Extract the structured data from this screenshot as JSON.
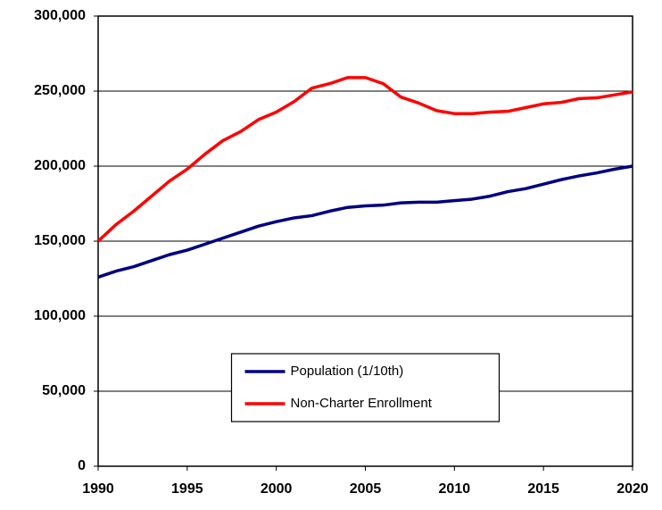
{
  "chart_data": {
    "type": "line",
    "x": [
      1990,
      1991,
      1992,
      1993,
      1994,
      1995,
      1996,
      1997,
      1998,
      1999,
      2000,
      2001,
      2002,
      2003,
      2004,
      2005,
      2006,
      2007,
      2008,
      2009,
      2010,
      2011,
      2012,
      2013,
      2014,
      2015,
      2016,
      2017,
      2018,
      2019,
      2020
    ],
    "series": [
      {
        "name": "Population (1/10th)",
        "color": "#000080",
        "values": [
          126000,
          130000,
          133000,
          137000,
          141000,
          144000,
          148000,
          152000,
          156000,
          160000,
          163000,
          165500,
          167000,
          170000,
          172500,
          173500,
          174000,
          175500,
          176000,
          176000,
          177000,
          178000,
          180000,
          183000,
          185000,
          188000,
          191000,
          193500,
          195500,
          198000,
          200000
        ]
      },
      {
        "name": "Non-Charter Enrollment",
        "color": "#ff0000",
        "values": [
          150000,
          161000,
          170000,
          180000,
          190000,
          198000,
          208000,
          217000,
          223000,
          231000,
          236000,
          243000,
          252000,
          255000,
          259000,
          259000,
          255000,
          246000,
          242000,
          237000,
          235000,
          235000,
          236000,
          236500,
          239000,
          241500,
          242500,
          245000,
          245500,
          247500,
          249500
        ]
      }
    ],
    "xlim": [
      1990,
      2020
    ],
    "xticks": [
      1990,
      1995,
      2000,
      2005,
      2010,
      2015,
      2020
    ],
    "ylim": [
      0,
      300000
    ],
    "yticks": [
      0,
      {
        "value": 50000,
        "label": "50,000"
      },
      {
        "value": 100000,
        "label": "100,000"
      },
      {
        "value": 150000,
        "label": "150,000"
      },
      {
        "value": 200000,
        "label": "200,000"
      },
      {
        "value": 250000,
        "label": "250,000"
      },
      {
        "value": 300000,
        "label": "300,000"
      }
    ],
    "grid": true,
    "legend": "lower center"
  }
}
